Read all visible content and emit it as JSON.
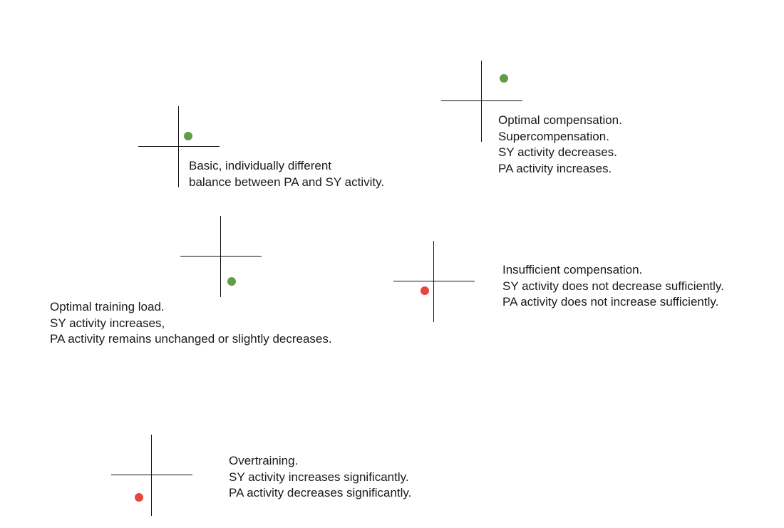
{
  "colors": {
    "green": "#5f9e45",
    "red": "#e8453c",
    "line": "#111111"
  },
  "states": [
    {
      "id": "basic",
      "dot_color": "green",
      "dot_quadrant": "bottom-right",
      "lines": [
        "Basic, individually different",
        "balance between PA and SY activity."
      ]
    },
    {
      "id": "optimal-compensation",
      "dot_color": "green",
      "dot_quadrant": "top-right",
      "lines": [
        "Optimal compensation.",
        "Supercompensation.",
        "SY activity decreases.",
        "PA activity increases."
      ]
    },
    {
      "id": "optimal-training-load",
      "dot_color": "green",
      "dot_quadrant": "bottom-right",
      "lines": [
        "Optimal training load.",
        "SY activity increases,",
        "PA activity remains unchanged or slightly decreases."
      ]
    },
    {
      "id": "insufficient-compensation",
      "dot_color": "red",
      "dot_quadrant": "bottom-left",
      "lines": [
        "Insufficient compensation.",
        "SY activity does not decrease sufficiently.",
        "PA activity does not increase sufficiently."
      ]
    },
    {
      "id": "overtraining",
      "dot_color": "red",
      "dot_quadrant": "bottom-left",
      "lines": [
        "Overtraining.",
        "SY activity increases significantly.",
        "PA activity decreases significantly."
      ]
    }
  ]
}
